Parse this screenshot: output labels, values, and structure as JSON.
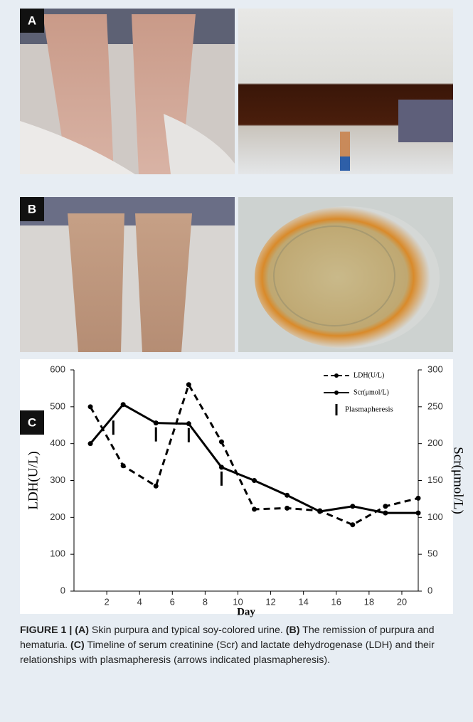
{
  "panels": [
    {
      "label": "A"
    },
    {
      "label": "B"
    }
  ],
  "chart_data": {
    "type": "line",
    "panel_label": "C",
    "x_label": "Day",
    "y_label": "LDH(U/L)",
    "y2_label": "Scr(μmol/L)",
    "x": [
      1,
      3,
      5,
      7,
      9,
      11,
      13,
      15,
      17,
      19,
      21
    ],
    "series": [
      {
        "name": "LDH(U/L)",
        "color": "#000000",
        "dashed": true,
        "values": [
          500,
          340,
          285,
          560,
          405,
          222,
          225,
          218,
          180,
          230,
          252
        ]
      },
      {
        "name": "Scr(μmol/L)",
        "color": "#000000",
        "dashed": false,
        "axis": "y2",
        "values": [
          200,
          253,
          228,
          227,
          168,
          150,
          130,
          108,
          115,
          106,
          106
        ]
      }
    ],
    "events": {
      "name": "Plasmapheresis",
      "x": [
        2.4,
        5,
        7,
        9
      ]
    },
    "xlim": [
      0,
      21
    ],
    "xticks": [
      2,
      4,
      6,
      8,
      10,
      12,
      14,
      16,
      18,
      20
    ],
    "ylim": [
      0,
      600
    ],
    "yticks": [
      0,
      100,
      200,
      300,
      400,
      500,
      600
    ],
    "y2lim": [
      0,
      300
    ],
    "y2ticks": [
      0,
      50,
      100,
      150,
      200,
      250,
      300
    ]
  },
  "caption": [
    {
      "text": "FIGURE 1 | (A)",
      "bold": true
    },
    {
      "text": " Skin purpura and typical soy-colored urine. ",
      "bold": false
    },
    {
      "text": "(B)",
      "bold": true
    },
    {
      "text": " The remission of purpura and hematuria. ",
      "bold": false
    },
    {
      "text": "(C)",
      "bold": true
    },
    {
      "text": " Timeline of serum creatinine (Scr) and lactate dehydrogenase (LDH) and their relationships with plasmapheresis (arrows indicated plasmapheresis).",
      "bold": false
    }
  ]
}
